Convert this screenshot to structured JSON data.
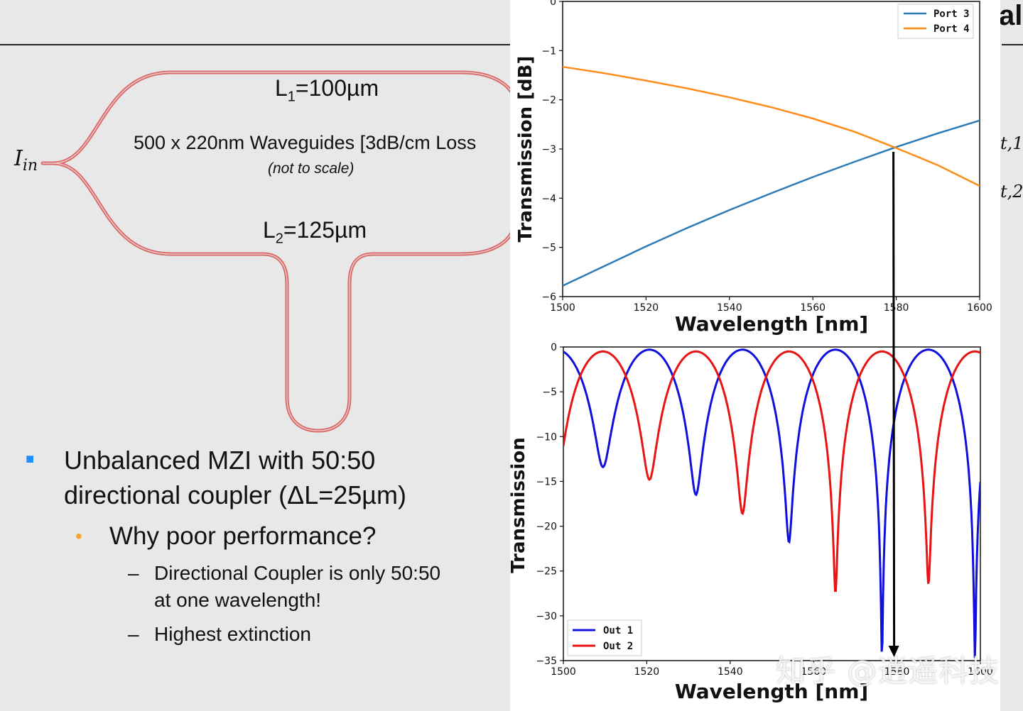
{
  "slide": {
    "title_fragment": "al",
    "right_fragments": [
      "t,1",
      "t,2"
    ]
  },
  "diagram": {
    "input_label": "I",
    "input_sub": "in",
    "l1_main": "L",
    "l1_sub": "1",
    "l1_value": "=100µm",
    "l2_main": "L",
    "l2_sub": "2",
    "l2_value": "=125µm",
    "waveguide_text": "500 x 220nm Waveguides [3dB/cm Loss",
    "scale_note": "(not to scale)",
    "waveguide_color": "#d96a6a"
  },
  "bullets": [
    {
      "level": 1,
      "marker": "■",
      "lines": [
        "Unbalanced MZI with 50:50",
        "directional coupler (ΔL=25µm)"
      ]
    },
    {
      "level": 2,
      "marker": "•",
      "lines": [
        "Why poor performance?"
      ]
    },
    {
      "level": 3,
      "marker": "–",
      "lines": [
        "Directional Coupler is only 50:50",
        "at one wavelength!"
      ]
    },
    {
      "level": 3,
      "marker": "–",
      "lines": [
        "Highest extinction"
      ]
    }
  ],
  "colors": {
    "bullet1": "#1e90ff",
    "bullet2": "#f5a623"
  },
  "watermark": "知乎 @逍遥科技",
  "chart_data": [
    {
      "type": "line",
      "title": "",
      "xlabel": "Wavelength [nm]",
      "ylabel": "Transmission [dB]",
      "xlim": [
        1500,
        1600
      ],
      "ylim": [
        -6,
        0
      ],
      "xticks": [
        1500,
        1520,
        1540,
        1560,
        1580,
        1600
      ],
      "yticks": [
        0,
        -1,
        -2,
        -3,
        -4,
        -5,
        -6
      ],
      "legend_position": "top-right",
      "series": [
        {
          "name": "Port 3",
          "color": "#2c7bb6",
          "x": [
            1500,
            1510,
            1520,
            1530,
            1540,
            1550,
            1560,
            1570,
            1580,
            1590,
            1600
          ],
          "y": [
            -5.78,
            -5.38,
            -4.98,
            -4.6,
            -4.24,
            -3.9,
            -3.57,
            -3.26,
            -2.96,
            -2.68,
            -2.42
          ]
        },
        {
          "name": "Port 4",
          "color": "#ff8c1a",
          "x": [
            1500,
            1510,
            1520,
            1530,
            1540,
            1550,
            1560,
            1570,
            1580,
            1590,
            1600
          ],
          "y": [
            -1.33,
            -1.46,
            -1.61,
            -1.77,
            -1.95,
            -2.15,
            -2.38,
            -2.65,
            -2.98,
            -3.33,
            -3.75
          ]
        }
      ]
    },
    {
      "type": "line",
      "title": "",
      "xlabel": "Wavelength [nm]",
      "ylabel": "Transmission",
      "xlim": [
        1500,
        1600
      ],
      "ylim": [
        -35,
        0
      ],
      "xticks": [
        1500,
        1520,
        1540,
        1560,
        1580,
        1600
      ],
      "yticks": [
        0,
        -5,
        -10,
        -15,
        -20,
        -25,
        -30,
        -35
      ],
      "legend_position": "bottom-left",
      "fsr_nm": 22.3,
      "series": [
        {
          "name": "Out 1",
          "color": "#1010dd",
          "peak_db": -0.3,
          "first_minimum_nm": 1509.5,
          "minima_db": [
            -13.4,
            -16.5,
            -21.8,
            -35
          ]
        },
        {
          "name": "Out 2",
          "color": "#e81414",
          "peak_db": -0.5,
          "first_minimum_nm": 1520.65,
          "minima_db": [
            -14.8,
            -18.6,
            -27.5,
            -26.5
          ]
        }
      ],
      "annotation": {
        "type": "arrow",
        "x_nm": 1580
      }
    }
  ]
}
